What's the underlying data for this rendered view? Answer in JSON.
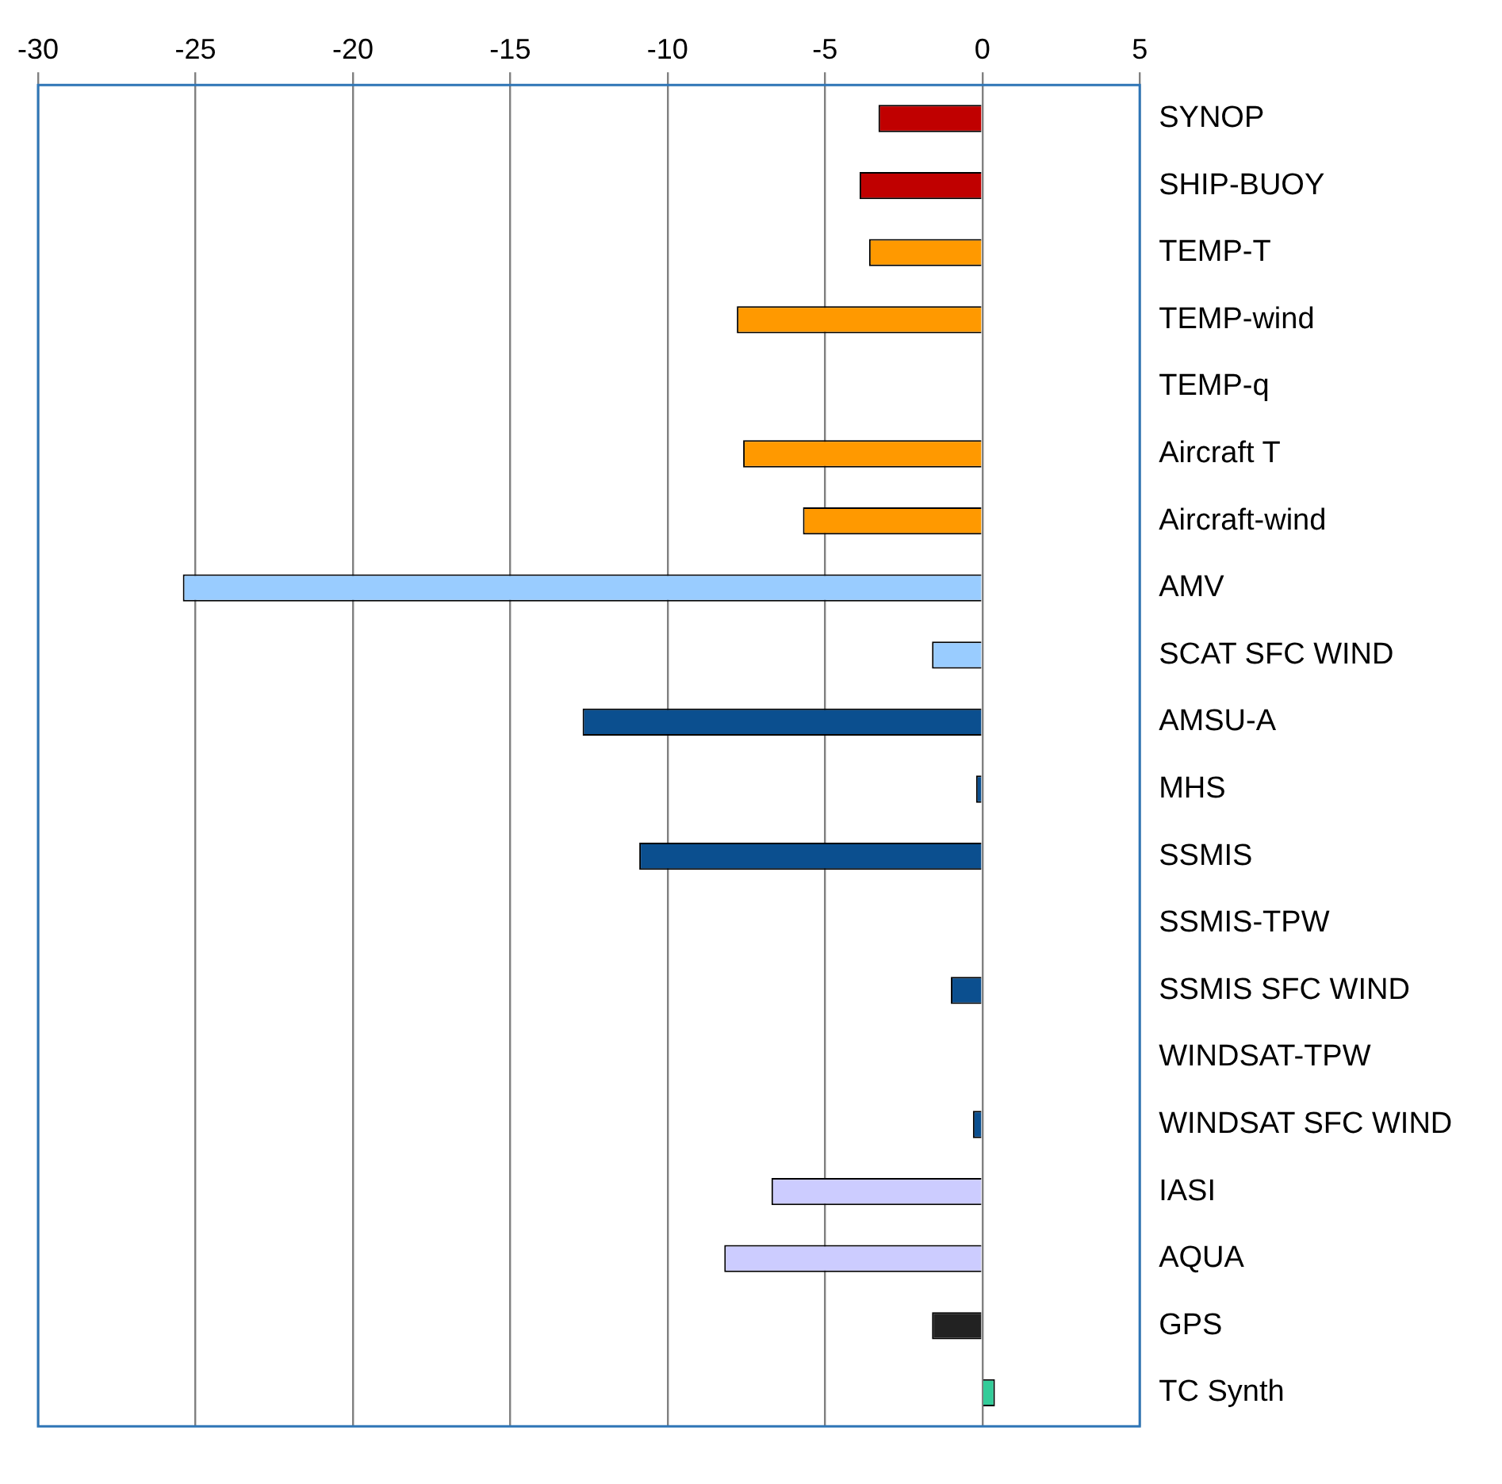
{
  "chart_data": {
    "type": "bar",
    "orientation": "horizontal",
    "categories": [
      "SYNOP",
      "SHIP-BUOY",
      "TEMP-T",
      "TEMP-wind",
      "TEMP-q",
      "Aircraft T",
      "Aircraft-wind",
      "AMV",
      "SCAT SFC WIND",
      "AMSU-A",
      "MHS",
      "SSMIS",
      "SSMIS-TPW",
      "SSMIS SFC WIND",
      "WINDSAT-TPW",
      "WINDSAT SFC WIND",
      "IASI",
      "AQUA",
      "GPS",
      "TC Synth"
    ],
    "values": [
      -3.3,
      -3.9,
      -3.6,
      -7.8,
      0,
      -7.6,
      -5.7,
      -25.4,
      -1.6,
      -12.7,
      -0.2,
      -10.9,
      0,
      -1.0,
      0,
      -0.3,
      -6.7,
      -8.2,
      -1.6,
      0.4
    ],
    "colors": [
      "#c00000",
      "#c00000",
      "#ff9900",
      "#ff9900",
      "#ff9900",
      "#ff9900",
      "#ff9900",
      "#99ccff",
      "#99ccff",
      "#0b4f8f",
      "#0b4f8f",
      "#0b4f8f",
      "#0b4f8f",
      "#0b4f8f",
      "#0b4f8f",
      "#0b4f8f",
      "#ccccff",
      "#ccccff",
      "#222222",
      "#33cc99"
    ],
    "xlim": [
      -30,
      5
    ],
    "xticks": [
      -30,
      -25,
      -20,
      -15,
      -10,
      -5,
      0,
      5
    ],
    "grid": "x",
    "legend": false
  }
}
